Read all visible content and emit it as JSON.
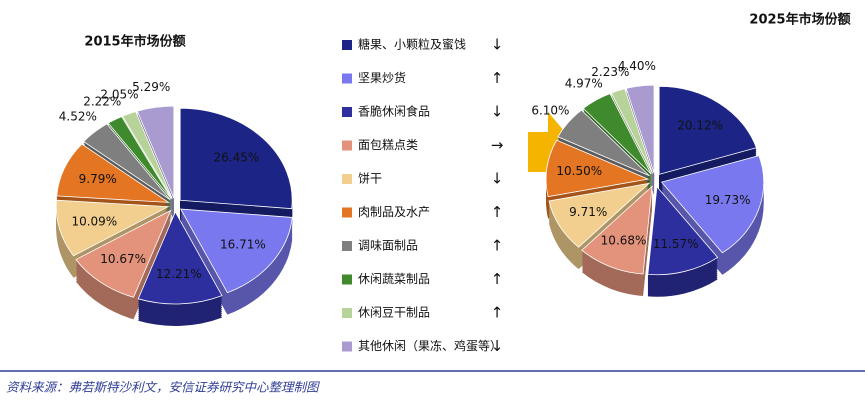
{
  "chart_data": [
    {
      "type": "pie",
      "title": "2015年市场份额",
      "values": [
        26.45,
        16.71,
        12.21,
        10.67,
        10.09,
        9.79,
        4.52,
        2.22,
        2.05,
        5.29
      ],
      "value_labels": [
        "26.45%",
        "16.71%",
        "12.21%",
        "10.67%",
        "10.09%",
        "9.79%",
        "4.52%",
        "2.22%",
        "2.05%",
        "5.29%"
      ]
    },
    {
      "type": "pie",
      "title": "2025年市场份额",
      "values": [
        20.12,
        19.73,
        11.57,
        10.68,
        9.71,
        10.5,
        6.1,
        4.97,
        2.23,
        4.4
      ],
      "value_labels": [
        "20.12%",
        "19.73%",
        "11.57%",
        "10.68%",
        "9.71%",
        "10.50%",
        "6.10%",
        "4.97%",
        "2.23%",
        "4.40%"
      ]
    }
  ],
  "legend": {
    "categories": [
      "糖果、小颗粒及蜜饯",
      "坚果炒货",
      "香脆休闲食品",
      "面包糕点类",
      "饼干",
      "肉制品及水产",
      "调味面制品",
      "休闲蔬菜制品",
      "休闲豆干制品",
      "其他休闲（果冻、鸡蛋等）"
    ],
    "colors": [
      "#1c2585",
      "#7a78ee",
      "#2e2f9e",
      "#e3927c",
      "#f2cf8e",
      "#e47523",
      "#7f7f7f",
      "#3f8a2c",
      "#b7d39a",
      "#a99bd0"
    ],
    "trends": [
      "↓",
      "↑",
      "↓",
      "→",
      "↓",
      "↑",
      "↑",
      "↑",
      "↑",
      "↓"
    ],
    "trend_colors": [
      "#2ea043",
      "#e0333a",
      "#2ea043",
      "#2ea043",
      "#2ea043",
      "#e0333a",
      "#e0333a",
      "#e0333a",
      "#e0333a",
      "#2ea043"
    ]
  },
  "source": "资料来源：弗若斯特沙利文，安信证券研究中心整理制图"
}
